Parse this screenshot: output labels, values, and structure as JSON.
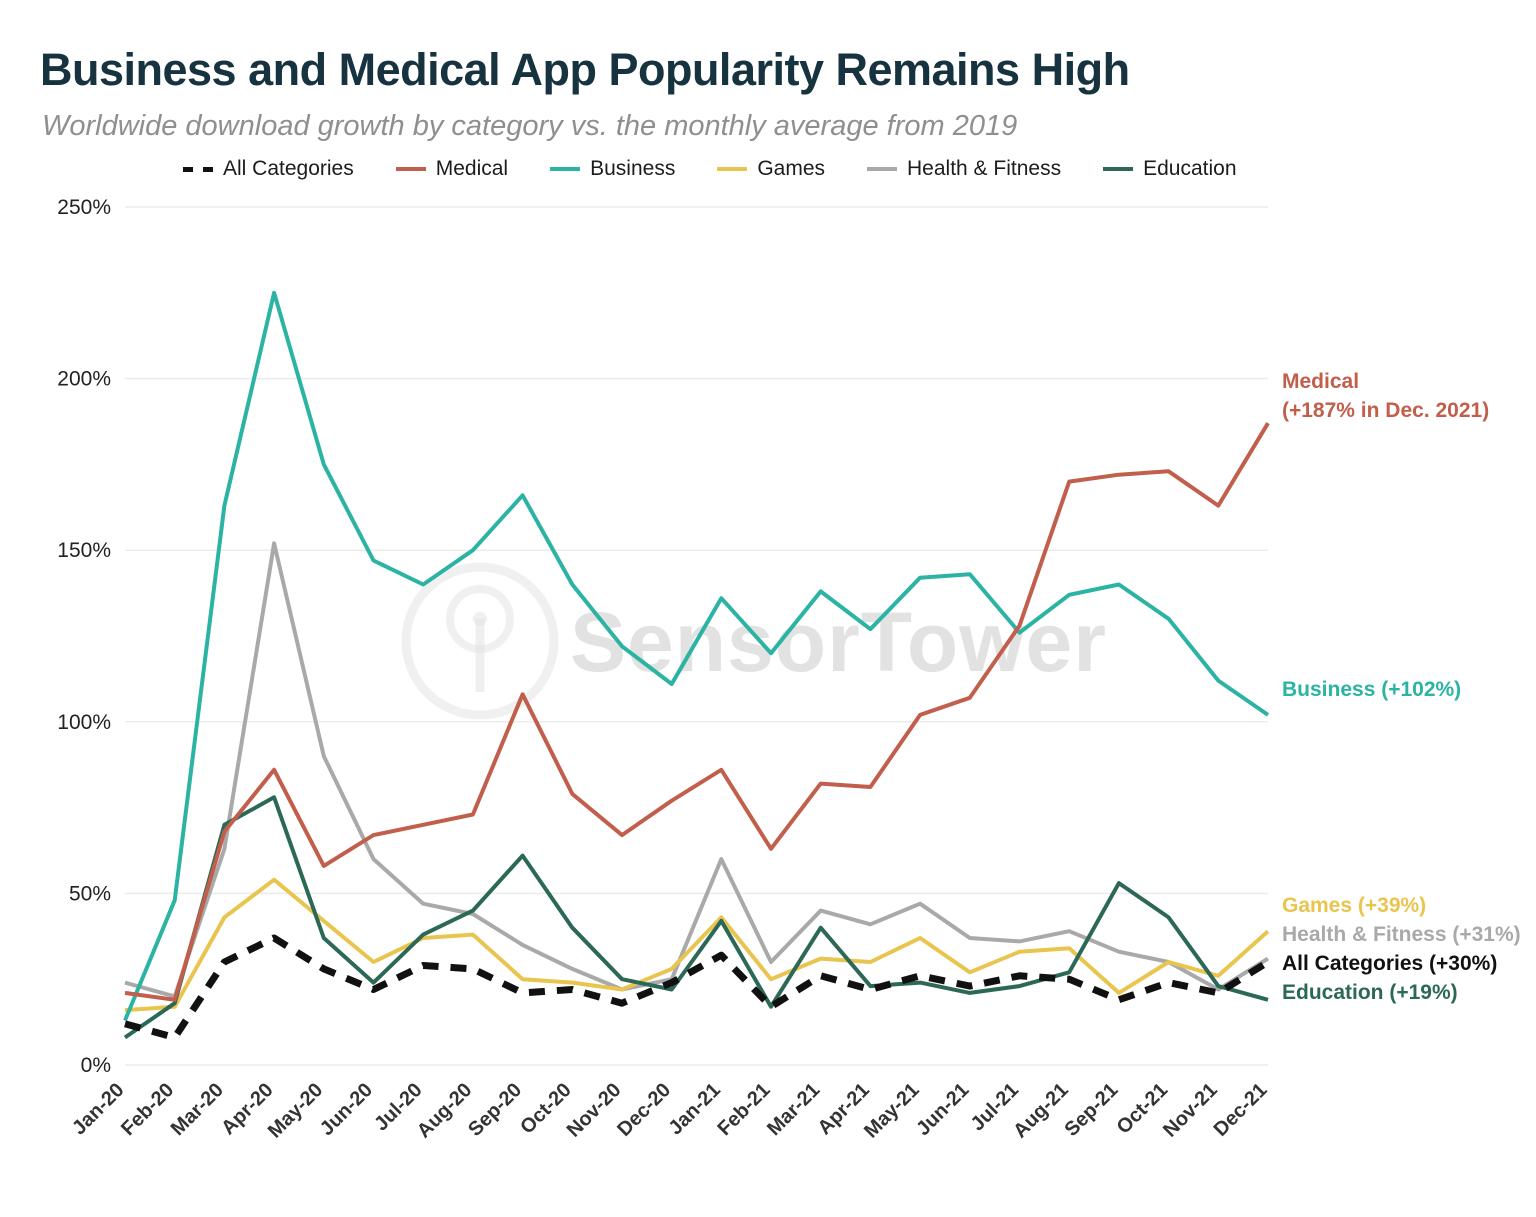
{
  "header": {
    "title": "Business and Medical App Popularity Remains High",
    "subtitle": "Worldwide download growth by category vs. the monthly average from 2019"
  },
  "watermark": {
    "text": "SensorTower",
    "icon": "radar-logo-icon"
  },
  "chart_data": {
    "type": "line",
    "x": [
      "Jan-20",
      "Feb-20",
      "Mar-20",
      "Apr-20",
      "May-20",
      "Jun-20",
      "Jul-20",
      "Aug-20",
      "Sep-20",
      "Oct-20",
      "Nov-20",
      "Dec-20",
      "Jan-21",
      "Feb-21",
      "Mar-21",
      "Apr-21",
      "May-21",
      "Jun-21",
      "Jul-21",
      "Aug-21",
      "Sep-21",
      "Oct-21",
      "Nov-21",
      "Dec-21"
    ],
    "ylim": [
      0,
      250
    ],
    "yticks": [
      0,
      50,
      100,
      150,
      200,
      250
    ],
    "ytick_suffix": "%",
    "grid": "horizontal",
    "legend_position": "top",
    "series": [
      {
        "name": "All Categories",
        "color": "#111111",
        "dash": true,
        "values": [
          12,
          8,
          30,
          37,
          28,
          22,
          29,
          28,
          21,
          22,
          18,
          24,
          32,
          17,
          26,
          22,
          26,
          23,
          26,
          25,
          19,
          24,
          21,
          30
        ]
      },
      {
        "name": "Medical",
        "color": "#c25e4c",
        "dash": false,
        "values": [
          21,
          19,
          68,
          86,
          58,
          67,
          70,
          73,
          108,
          79,
          67,
          77,
          86,
          63,
          82,
          81,
          102,
          107,
          128,
          170,
          172,
          173,
          163,
          187
        ]
      },
      {
        "name": "Business",
        "color": "#2bb3a3",
        "dash": false,
        "values": [
          13,
          48,
          163,
          225,
          175,
          147,
          140,
          150,
          166,
          140,
          122,
          111,
          136,
          120,
          138,
          127,
          142,
          143,
          126,
          137,
          140,
          130,
          112,
          102
        ]
      },
      {
        "name": "Games",
        "color": "#e9c44f",
        "dash": false,
        "values": [
          16,
          17,
          43,
          54,
          42,
          30,
          37,
          38,
          25,
          24,
          22,
          28,
          43,
          25,
          31,
          30,
          37,
          27,
          33,
          34,
          21,
          30,
          26,
          39
        ]
      },
      {
        "name": "Health & Fitness",
        "color": "#a9a9a9",
        "dash": false,
        "values": [
          24,
          20,
          63,
          152,
          90,
          60,
          47,
          44,
          35,
          28,
          22,
          25,
          60,
          30,
          45,
          41,
          47,
          37,
          36,
          39,
          33,
          30,
          22,
          31
        ]
      },
      {
        "name": "Education",
        "color": "#2c6857",
        "dash": false,
        "values": [
          8,
          18,
          70,
          78,
          37,
          24,
          38,
          45,
          61,
          40,
          25,
          22,
          42,
          17,
          40,
          23,
          24,
          21,
          23,
          27,
          53,
          43,
          23,
          19
        ]
      }
    ],
    "annotations": [
      {
        "series": "Medical",
        "lines": [
          "Medical",
          "(+187% in Dec. 2021)"
        ],
        "value": 187,
        "color": "#c25e4c"
      },
      {
        "series": "Business",
        "lines": [
          "Business (+102%)"
        ],
        "value": 102,
        "color": "#2bb3a3"
      },
      {
        "series": "Games",
        "lines": [
          "Games (+39%)"
        ],
        "value": 39,
        "color": "#e9c44f"
      },
      {
        "series": "Health & Fitness",
        "lines": [
          "Health & Fitness (+31%)"
        ],
        "value": 31,
        "color": "#a9a9a9"
      },
      {
        "series": "All Categories",
        "lines": [
          "All Categories (+30%)"
        ],
        "value": 30,
        "color": "#111111"
      },
      {
        "series": "Education",
        "lines": [
          "Education (+19%)"
        ],
        "value": 19,
        "color": "#2c6857"
      }
    ]
  }
}
